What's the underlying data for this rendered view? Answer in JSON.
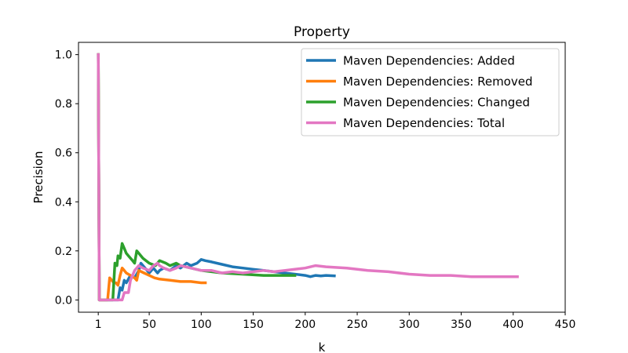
{
  "chart_data": {
    "type": "line",
    "title": "Property",
    "xlabel": "k",
    "ylabel": "Precision",
    "xlim": [
      -18,
      450
    ],
    "ylim": [
      -0.05,
      1.05
    ],
    "xticks": [
      1,
      50,
      100,
      150,
      200,
      250,
      300,
      350,
      400,
      450
    ],
    "yticks": [
      0.0,
      0.2,
      0.4,
      0.6,
      0.8,
      1.0
    ],
    "xtick_labels": [
      "1",
      "50",
      "100",
      "150",
      "200",
      "250",
      "300",
      "350",
      "400",
      "450"
    ],
    "ytick_labels": [
      "0.0",
      "0.2",
      "0.4",
      "0.6",
      "0.8",
      "1.0"
    ],
    "grid": false,
    "legend_position": "top-right",
    "series": [
      {
        "name": "Maven Dependencies: Added",
        "color": "#1f77b4",
        "x": [
          1,
          2,
          3,
          5,
          8,
          12,
          16,
          18,
          20,
          22,
          24,
          26,
          28,
          32,
          36,
          40,
          42,
          46,
          50,
          54,
          58,
          60,
          64,
          70,
          76,
          80,
          86,
          90,
          96,
          100,
          104,
          110,
          120,
          130,
          140,
          150,
          160,
          170,
          180,
          190,
          200,
          205,
          210,
          215,
          220,
          228
        ],
        "y": [
          1.0,
          0.0,
          0.0,
          0.0,
          0.0,
          0.0,
          0.0,
          0.0,
          0.0,
          0.05,
          0.04,
          0.08,
          0.07,
          0.1,
          0.09,
          0.12,
          0.15,
          0.13,
          0.11,
          0.13,
          0.11,
          0.12,
          0.13,
          0.12,
          0.14,
          0.13,
          0.15,
          0.14,
          0.15,
          0.165,
          0.16,
          0.155,
          0.145,
          0.135,
          0.13,
          0.125,
          0.12,
          0.115,
          0.11,
          0.105,
          0.1,
          0.095,
          0.1,
          0.098,
          0.1,
          0.098
        ]
      },
      {
        "name": "Maven Dependencies: Removed",
        "color": "#ff7f0e",
        "x": [
          1,
          2,
          3,
          5,
          8,
          10,
          12,
          14,
          16,
          18,
          20,
          22,
          24,
          26,
          28,
          32,
          36,
          38,
          40,
          45,
          50,
          55,
          60,
          70,
          80,
          90,
          100,
          104
        ],
        "y": [
          1.0,
          0.0,
          0.0,
          0.0,
          0.0,
          0.0,
          0.09,
          0.08,
          0.07,
          0.07,
          0.06,
          0.1,
          0.13,
          0.12,
          0.11,
          0.1,
          0.09,
          0.08,
          0.12,
          0.11,
          0.1,
          0.09,
          0.085,
          0.08,
          0.075,
          0.075,
          0.07,
          0.07
        ]
      },
      {
        "name": "Maven Dependencies: Changed",
        "color": "#2ca02c",
        "x": [
          1,
          2,
          3,
          5,
          8,
          12,
          15,
          17,
          19,
          20,
          22,
          24,
          26,
          28,
          30,
          34,
          36,
          38,
          40,
          44,
          50,
          56,
          60,
          66,
          70,
          76,
          80,
          90,
          100,
          120,
          140,
          160,
          180,
          190
        ],
        "y": [
          1.0,
          0.0,
          0.0,
          0.0,
          0.0,
          0.0,
          0.0,
          0.15,
          0.14,
          0.18,
          0.17,
          0.23,
          0.21,
          0.19,
          0.18,
          0.16,
          0.15,
          0.2,
          0.19,
          0.17,
          0.15,
          0.14,
          0.16,
          0.15,
          0.14,
          0.15,
          0.14,
          0.13,
          0.12,
          0.11,
          0.105,
          0.1,
          0.1,
          0.1
        ]
      },
      {
        "name": "Maven Dependencies: Total",
        "color": "#e377c2",
        "x": [
          1,
          2,
          3,
          5,
          8,
          12,
          16,
          20,
          24,
          26,
          30,
          32,
          36,
          40,
          44,
          50,
          54,
          58,
          60,
          64,
          70,
          76,
          80,
          90,
          100,
          110,
          120,
          130,
          140,
          150,
          160,
          170,
          180,
          190,
          200,
          210,
          220,
          240,
          260,
          280,
          300,
          320,
          340,
          360,
          380,
          400,
          404
        ],
        "y": [
          1.0,
          0.0,
          0.0,
          0.0,
          0.0,
          0.0,
          0.0,
          0.0,
          0.0,
          0.03,
          0.03,
          0.08,
          0.12,
          0.14,
          0.13,
          0.12,
          0.14,
          0.15,
          0.14,
          0.13,
          0.12,
          0.13,
          0.14,
          0.13,
          0.12,
          0.12,
          0.11,
          0.115,
          0.11,
          0.115,
          0.12,
          0.115,
          0.12,
          0.125,
          0.13,
          0.14,
          0.135,
          0.13,
          0.12,
          0.115,
          0.105,
          0.1,
          0.1,
          0.095,
          0.095,
          0.095,
          0.095
        ]
      }
    ]
  }
}
